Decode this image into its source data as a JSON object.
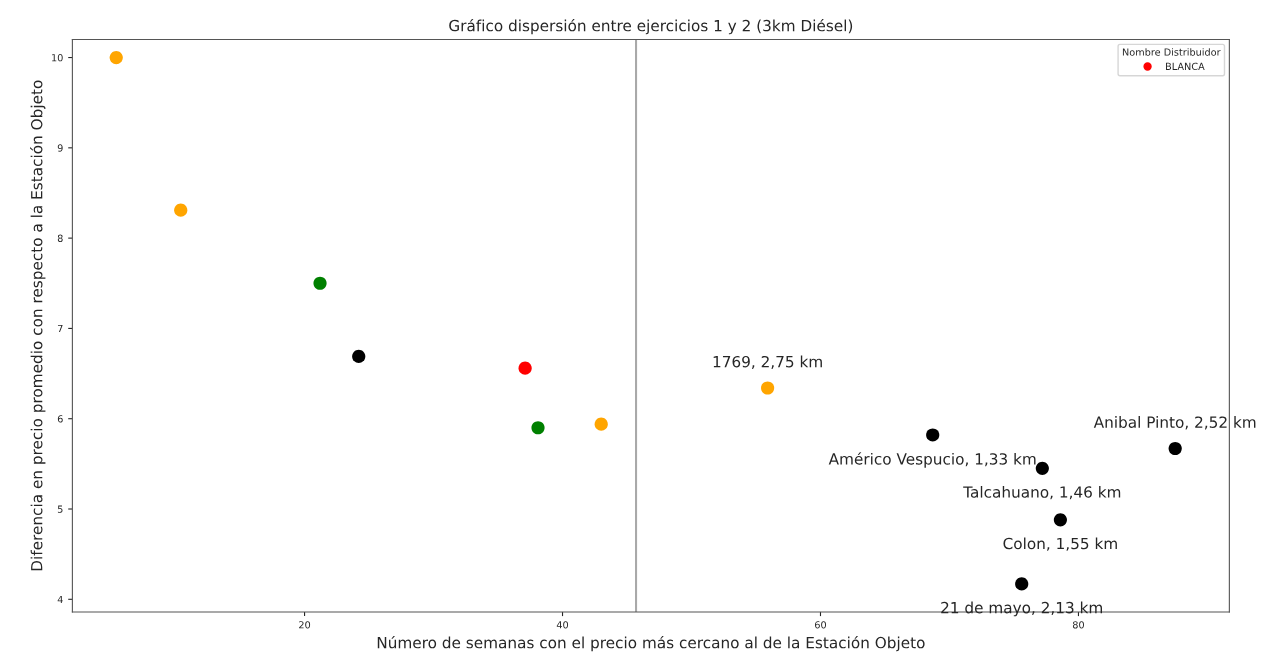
{
  "chart_data": {
    "type": "scatter",
    "title": "Gráfico dispersión entre ejercicios 1 y 2 (3km Diésel)",
    "xlabel": "Número de semanas con el precio más cercano al de la Estación Objeto",
    "ylabel": "Diferencia en precio promedio con respecto a la Estación Objeto",
    "legend_title": "Nombre Distribuidor",
    "legend": "top right",
    "grid": false,
    "marker": "circle",
    "xlim": [
      2,
      91.7
    ],
    "ylim": [
      3.86,
      10.2
    ],
    "xticks": [
      20,
      40,
      60,
      80
    ],
    "yticks": [
      4,
      5,
      6,
      7,
      8,
      9,
      10
    ],
    "series": [
      {
        "color": "#000000",
        "x": [
          24.2,
          68.7,
          77.2,
          78.6,
          75.6,
          87.5
        ],
        "values": [
          6.69,
          5.82,
          5.45,
          4.88,
          4.17,
          5.67
        ]
      },
      {
        "color": "#ffa500",
        "x": [
          5.4,
          10.4,
          43.0,
          55.9
        ],
        "values": [
          10.0,
          8.31,
          5.94,
          6.34
        ]
      },
      {
        "color": "#008000",
        "x": [
          21.2,
          38.1
        ],
        "values": [
          7.5,
          5.9
        ]
      },
      {
        "name": "BLANCA",
        "color": "#ff0000",
        "x": [
          37.1
        ],
        "values": [
          6.56
        ]
      }
    ],
    "ref_lines": [
      {
        "axis": "x",
        "value": 45.7,
        "color": "#a9a9a9"
      }
    ],
    "annotations": [
      {
        "text": "1769, 2,75 km",
        "x": 55.9,
        "y": 6.34
      },
      {
        "text": "Américo Vespucio, 1,33 km",
        "x": 68.7,
        "y": 5.82
      },
      {
        "text": "Anibal Pinto, 2,52 km",
        "x": 87.5,
        "y": 5.67
      },
      {
        "text": "Talcahuano, 1,46 km",
        "x": 77.2,
        "y": 5.45
      },
      {
        "text": "Colon, 1,55 km",
        "x": 78.6,
        "y": 4.88
      },
      {
        "text": "21 de mayo, 2,13 km",
        "x": 75.6,
        "y": 4.17
      }
    ]
  }
}
